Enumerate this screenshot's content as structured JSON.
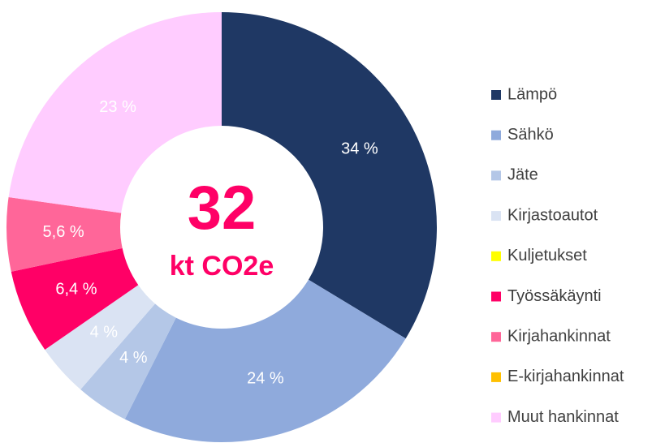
{
  "chart_data": {
    "type": "donut",
    "categories": [
      "Lämpö",
      "Sähkö",
      "Jäte",
      "Kirjastoautot",
      "Kuljetukset",
      "Työssäkäynti",
      "Kirjahankinnat",
      "E-kirjahankinnat",
      "Muut hankinnat"
    ],
    "values": [
      34,
      24,
      4,
      4,
      0,
      6.4,
      5.6,
      0,
      23
    ],
    "value_labels": [
      "34 %",
      "24 %",
      "4 %",
      "4 %",
      null,
      "6,4 %",
      "5,6 %",
      null,
      "23 %"
    ],
    "colors": [
      "#1f3864",
      "#8faadc",
      "#b4c7e7",
      "#dae3f3",
      "#ffff00",
      "#ff0066",
      "#ff6699",
      "#ffc000",
      "#ffccff"
    ],
    "center_value": 32,
    "center_unit": "kt CO2e",
    "legend": "right"
  }
}
